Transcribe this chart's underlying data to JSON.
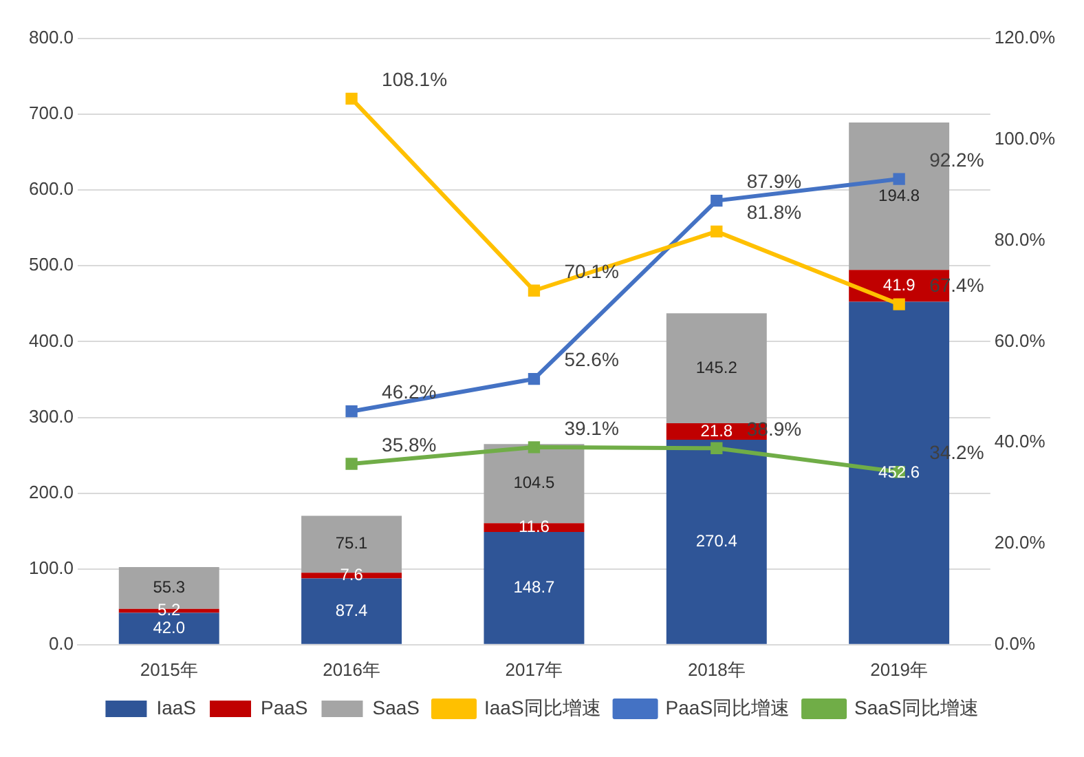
{
  "chart_data": {
    "type": "bar",
    "categories": [
      "2015年",
      "2016年",
      "2017年",
      "2018年",
      "2019年"
    ],
    "stacked": true,
    "series": [
      {
        "name": "IaaS",
        "color": "#2f5597",
        "values": [
          42.0,
          87.4,
          148.7,
          270.4,
          452.6
        ],
        "value_labels": [
          "42.0",
          "87.4",
          "148.7",
          "270.4",
          "452.6"
        ]
      },
      {
        "name": "PaaS",
        "color": "#c00000",
        "values": [
          5.2,
          7.6,
          11.6,
          21.8,
          41.9
        ],
        "value_labels": [
          "5.2",
          "7.6",
          "11.6",
          "21.8",
          "41.9"
        ]
      },
      {
        "name": "SaaS",
        "color": "#a5a5a5",
        "values": [
          55.3,
          75.1,
          104.5,
          145.2,
          194.8
        ],
        "value_labels": [
          "55.3",
          "75.1",
          "104.5",
          "145.2",
          "194.8"
        ]
      },
      {
        "name": "IaaS同比增速",
        "type": "line",
        "axis": "y2",
        "color": "#ffc000",
        "values": [
          null,
          108.1,
          70.1,
          81.8,
          67.4
        ],
        "value_labels": [
          null,
          "108.1%",
          "70.1%",
          "81.8%",
          "67.4%"
        ]
      },
      {
        "name": "PaaS同比增速",
        "type": "line",
        "axis": "y2",
        "color": "#4472c4",
        "values": [
          null,
          46.2,
          52.6,
          87.9,
          92.2
        ],
        "value_labels": [
          null,
          "46.2%",
          "52.6%",
          "87.9%",
          "92.2%"
        ]
      },
      {
        "name": "SaaS同比增速",
        "type": "line",
        "axis": "y2",
        "color": "#70ad47",
        "values": [
          null,
          35.8,
          39.1,
          38.9,
          34.2
        ],
        "value_labels": [
          null,
          "35.8%",
          "39.1%",
          "38.9%",
          "34.2%"
        ]
      }
    ],
    "ylim": [
      0,
      800
    ],
    "yticks": [
      {
        "value": 0,
        "label": "0.0"
      },
      {
        "value": 100,
        "label": "100.0"
      },
      {
        "value": 200,
        "label": "200.0"
      },
      {
        "value": 300,
        "label": "300.0"
      },
      {
        "value": 400,
        "label": "400.0"
      },
      {
        "value": 500,
        "label": "500.0"
      },
      {
        "value": 600,
        "label": "600.0"
      },
      {
        "value": 700,
        "label": "700.0"
      },
      {
        "value": 800,
        "label": "800.0"
      }
    ],
    "y2lim": [
      0,
      120
    ],
    "y2ticks": [
      {
        "value": 0,
        "label": "0.0%"
      },
      {
        "value": 20,
        "label": "20.0%"
      },
      {
        "value": 40,
        "label": "40.0%"
      },
      {
        "value": 60,
        "label": "60.0%"
      },
      {
        "value": 80,
        "label": "80.0%"
      },
      {
        "value": 100,
        "label": "100.0%"
      },
      {
        "value": 120,
        "label": "120.0%"
      }
    ],
    "grid": "y",
    "legend": "bottom",
    "marker": "square",
    "line_style": "solid"
  }
}
